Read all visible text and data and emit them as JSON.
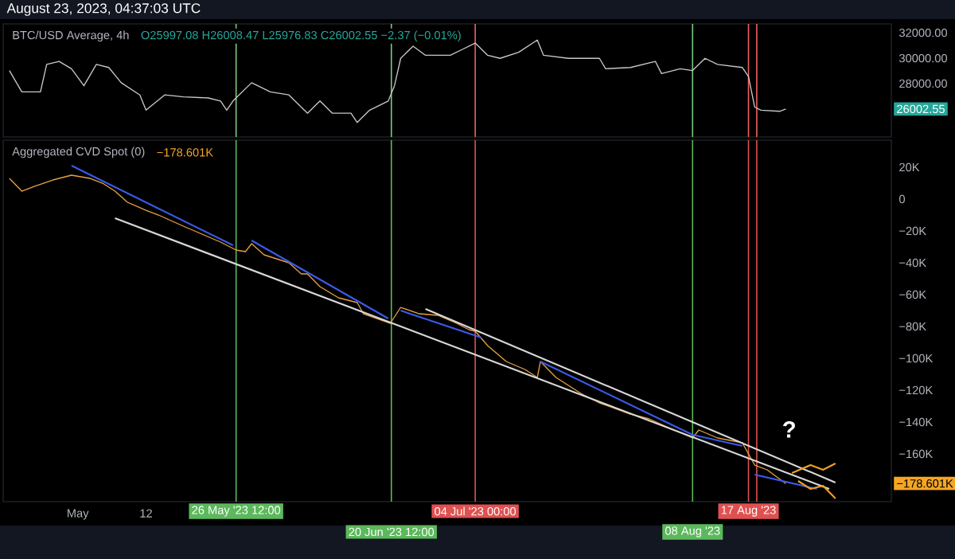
{
  "chart_data": [
    {
      "type": "line",
      "title": "BTC/USD Average, 4h",
      "annotations": [
        "August 23, 2023, 04:37:03 UTC",
        "O25997.08 H26008.47 L25976.83 C26002.55 −2.37 (−0.01%)",
        "26002.55"
      ],
      "xlim": [
        "2023-04-19",
        "2023-09-09"
      ],
      "ylim": [
        23800,
        32700
      ],
      "tick_labels": "y",
      "yticks": [
        {
          "value": 28000,
          "label": "28000.00"
        },
        {
          "value": 30000,
          "label": "30000.00"
        },
        {
          "value": 32000,
          "label": "32000.00"
        }
      ],
      "ref_lines": [
        {
          "axis": "x",
          "value": "2023-05-26T12:00",
          "color": "#7fc97f"
        },
        {
          "axis": "x",
          "value": "2023-06-20T12:00",
          "color": "#7fc97f"
        },
        {
          "axis": "x",
          "value": "2023-07-04",
          "color": "#f06060"
        },
        {
          "axis": "x",
          "value": "2023-08-08",
          "color": "#7fc97f"
        },
        {
          "axis": "x",
          "value": "2023-08-17",
          "color": "#f06060"
        },
        {
          "axis": "x",
          "value": "2023-08-18T08:00",
          "color": "#f06060"
        }
      ],
      "series": [
        {
          "color": "#c8c8c8",
          "x": [
            "2023-04-20",
            "2023-04-22",
            "2023-04-25",
            "2023-04-26",
            "2023-04-28",
            "2023-04-30",
            "2023-05-02",
            "2023-05-04",
            "2023-05-06",
            "2023-05-08",
            "2023-05-11",
            "2023-05-12",
            "2023-05-15",
            "2023-05-18",
            "2023-05-22",
            "2023-05-24",
            "2023-05-25",
            "2023-05-26",
            "2023-05-29",
            "2023-06-01",
            "2023-06-04",
            "2023-06-07",
            "2023-06-09",
            "2023-06-11",
            "2023-06-14",
            "2023-06-15",
            "2023-06-17",
            "2023-06-20",
            "2023-06-21",
            "2023-06-22",
            "2023-06-24",
            "2023-06-26",
            "2023-06-30",
            "2023-07-02",
            "2023-07-04",
            "2023-07-06",
            "2023-07-08",
            "2023-07-11",
            "2023-07-14",
            "2023-07-15",
            "2023-07-19",
            "2023-07-24",
            "2023-07-25",
            "2023-07-29",
            "2023-08-02",
            "2023-08-03",
            "2023-08-06",
            "2023-08-08",
            "2023-08-10",
            "2023-08-12",
            "2023-08-16",
            "2023-08-17",
            "2023-08-17T12:00",
            "2023-08-18",
            "2023-08-19",
            "2023-08-22",
            "2023-08-23"
          ],
          "values": [
            29030,
            27350,
            27350,
            29510,
            29750,
            29170,
            27830,
            29510,
            29270,
            28070,
            27110,
            25910,
            27110,
            26960,
            26870,
            26630,
            25910,
            26630,
            28070,
            27350,
            27110,
            25670,
            26630,
            25670,
            25670,
            24940,
            25910,
            26630,
            27830,
            29990,
            30950,
            30230,
            30230,
            30710,
            31190,
            30230,
            29990,
            30470,
            31430,
            30230,
            29990,
            29990,
            29170,
            29270,
            29750,
            28790,
            29170,
            29030,
            29990,
            29510,
            29270,
            28550,
            27350,
            26150,
            25910,
            25820,
            26002.55
          ]
        }
      ]
    },
    {
      "type": "line",
      "title": "Aggregated CVD Spot (0)",
      "annotations": [
        "−178.601K",
        "−178.601K",
        "?"
      ],
      "xlim": [
        "2023-04-19",
        "2023-09-09"
      ],
      "ylim": [
        -190000,
        37000
      ],
      "xticks": [
        {
          "value": "2023-05-01",
          "label": "May"
        },
        {
          "value": "2023-05-12",
          "label": "12"
        }
      ],
      "yticks": [
        {
          "value": -160000,
          "label": "−160K"
        },
        {
          "value": -140000,
          "label": "−140K"
        },
        {
          "value": -120000,
          "label": "−120K"
        },
        {
          "value": -100000,
          "label": "−100K"
        },
        {
          "value": -80000,
          "label": "−80K"
        },
        {
          "value": -60000,
          "label": "−60K"
        },
        {
          "value": -40000,
          "label": "−40K"
        },
        {
          "value": -20000,
          "label": "−20K"
        },
        0,
        {
          "value": 20000,
          "label": "20K"
        }
      ],
      "ref_lines": [
        {
          "axis": "x",
          "value": "2023-05-26T12:00",
          "color": "#5cb85c",
          "label": "26 May '23  12:00"
        },
        {
          "axis": "x",
          "value": "2023-06-20T12:00",
          "color": "#5cb85c",
          "label": "20 Jun '23  12:00"
        },
        {
          "axis": "x",
          "value": "2023-07-04",
          "color": "#e05050",
          "label": "04 Jul '23  00:00"
        },
        {
          "axis": "x",
          "value": "2023-08-08",
          "color": "#5cb85c",
          "label": "08 Aug '23"
        },
        {
          "axis": "x",
          "value": "2023-08-17",
          "color": "#e05050",
          "label": "17 Aug '23"
        },
        {
          "axis": "x",
          "value": "2023-08-18T08:00",
          "color": "#e05050"
        }
      ],
      "series": [
        {
          "color": "#e8a040",
          "x": [
            "2023-04-20",
            "2023-04-22",
            "2023-04-24",
            "2023-04-27",
            "2023-04-30",
            "2023-05-03",
            "2023-05-05",
            "2023-05-07",
            "2023-05-09",
            "2023-05-12",
            "2023-05-14",
            "2023-05-18",
            "2023-05-21",
            "2023-05-24",
            "2023-05-26T12:00",
            "2023-05-28",
            "2023-05-29",
            "2023-05-31",
            "2023-06-04",
            "2023-06-06",
            "2023-06-07",
            "2023-06-09",
            "2023-06-12",
            "2023-06-15",
            "2023-06-16",
            "2023-06-20T08:00",
            "2023-06-22",
            "2023-06-25",
            "2023-06-28",
            "2023-07-01",
            "2023-07-03",
            "2023-07-04",
            "2023-07-06",
            "2023-07-09",
            "2023-07-12",
            "2023-07-14",
            "2023-07-14T12:00",
            "2023-07-17",
            "2023-07-21",
            "2023-07-24",
            "2023-07-29",
            "2023-08-01",
            "2023-08-05",
            "2023-08-08",
            "2023-08-09",
            "2023-08-12",
            "2023-08-16",
            "2023-08-18",
            "2023-08-20",
            "2023-08-23"
          ],
          "values": [
            13000,
            5000,
            8000,
            12000,
            15000,
            13000,
            10000,
            5000,
            -2000,
            -7000,
            -10000,
            -17000,
            -22000,
            -27000,
            -32000,
            -33000,
            -28000,
            -35000,
            -40000,
            -47000,
            -47000,
            -55000,
            -62000,
            -65000,
            -72000,
            -78000,
            -68000,
            -72000,
            -73000,
            -78000,
            -82000,
            -83000,
            -92000,
            -102000,
            -107000,
            -112000,
            -102000,
            -112000,
            -122000,
            -128000,
            -135000,
            -138000,
            -145000,
            -150000,
            -145000,
            -150000,
            -153000,
            -167000,
            -170000,
            -178601
          ]
        },
        {
          "color": "#3a5ae8",
          "x": [
            "2023-04-30",
            "2023-05-26"
          ],
          "values": [
            21000,
            -29000
          ]
        },
        {
          "color": "#3a5ae8",
          "x": [
            "2023-05-29",
            "2023-06-20"
          ],
          "values": [
            -26000,
            -75000
          ]
        },
        {
          "color": "#3a5ae8",
          "x": [
            "2023-06-22",
            "2023-07-05"
          ],
          "values": [
            -70000,
            -87000
          ]
        },
        {
          "color": "#3a5ae8",
          "x": [
            "2023-07-14T12:00",
            "2023-08-08",
            "2023-08-16"
          ],
          "values": [
            -102000,
            -148000,
            -155000
          ]
        },
        {
          "color": "#3a5ae8",
          "x": [
            "2023-08-18",
            "2023-08-28"
          ],
          "values": [
            -173000,
            -182000
          ]
        },
        {
          "color": "#d8d8d8",
          "x": [
            "2023-05-07",
            "2023-08-30"
          ],
          "values": [
            -12000,
            -182000
          ]
        },
        {
          "color": "#d8d8d8",
          "x": [
            "2023-06-26",
            "2023-08-31"
          ],
          "values": [
            -69000,
            -178000
          ]
        },
        {
          "color": "#f0a020",
          "x": [
            "2023-08-24",
            "2023-08-27",
            "2023-08-29",
            "2023-08-31"
          ],
          "values": [
            -172000,
            -167000,
            -170000,
            -166000
          ]
        },
        {
          "color": "#f0a020",
          "x": [
            "2023-08-25",
            "2023-08-27",
            "2023-08-29",
            "2023-08-31"
          ],
          "values": [
            -177000,
            -182000,
            -180000,
            -188000
          ]
        }
      ]
    }
  ]
}
